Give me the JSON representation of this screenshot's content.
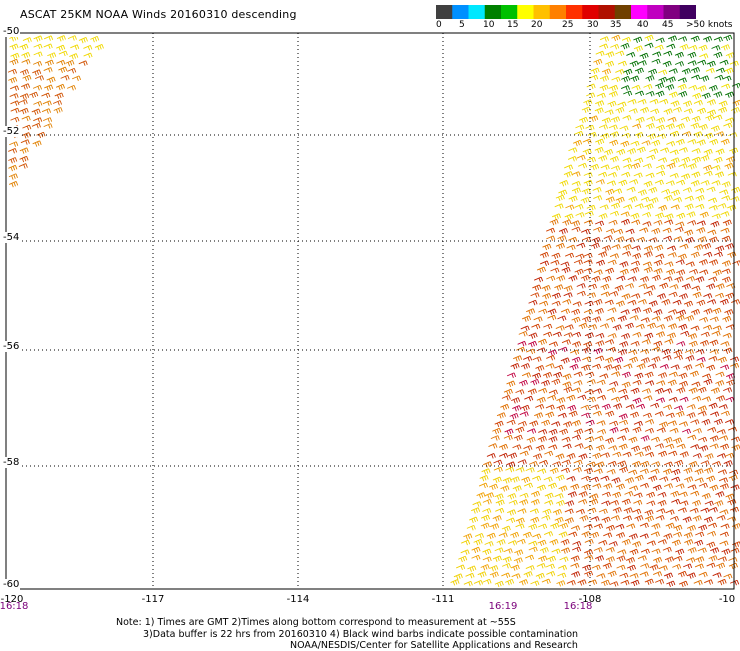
{
  "title": "ASCAT 25KM NOAA Winds 20160310 descending",
  "colorbar": {
    "labels": [
      "0",
      "5",
      "10",
      "15",
      "20",
      "25",
      "30",
      "35",
      "40",
      "45",
      ">50 knots"
    ],
    "colors": [
      "#404040",
      "#0090ff",
      "#00e8ff",
      "#008000",
      "#00c000",
      "#ffff00",
      "#ffc000",
      "#ff8000",
      "#ff3000",
      "#e00000",
      "#b01000",
      "#704000",
      "#ff00ff",
      "#c000c0",
      "#800080",
      "#400060"
    ]
  },
  "longitude_labels": [
    "-120",
    "-117",
    "-114",
    "-111",
    "-108",
    "-10"
  ],
  "latitude_labels": [
    "-50",
    "-52",
    "-54",
    "-56",
    "-58",
    "-60"
  ],
  "time_labels": [
    "16:18",
    "16:19",
    "16:18"
  ],
  "notes": [
    "Note: 1) Times are GMT 2)Times along bottom correspond to measurement at ~55S",
    "3)Data buffer is 22 hrs from 20160310 4) Black wind barbs indicate possible contamination",
    "NOAA/NESDIS/Center for Satellite Applications and Research"
  ]
}
